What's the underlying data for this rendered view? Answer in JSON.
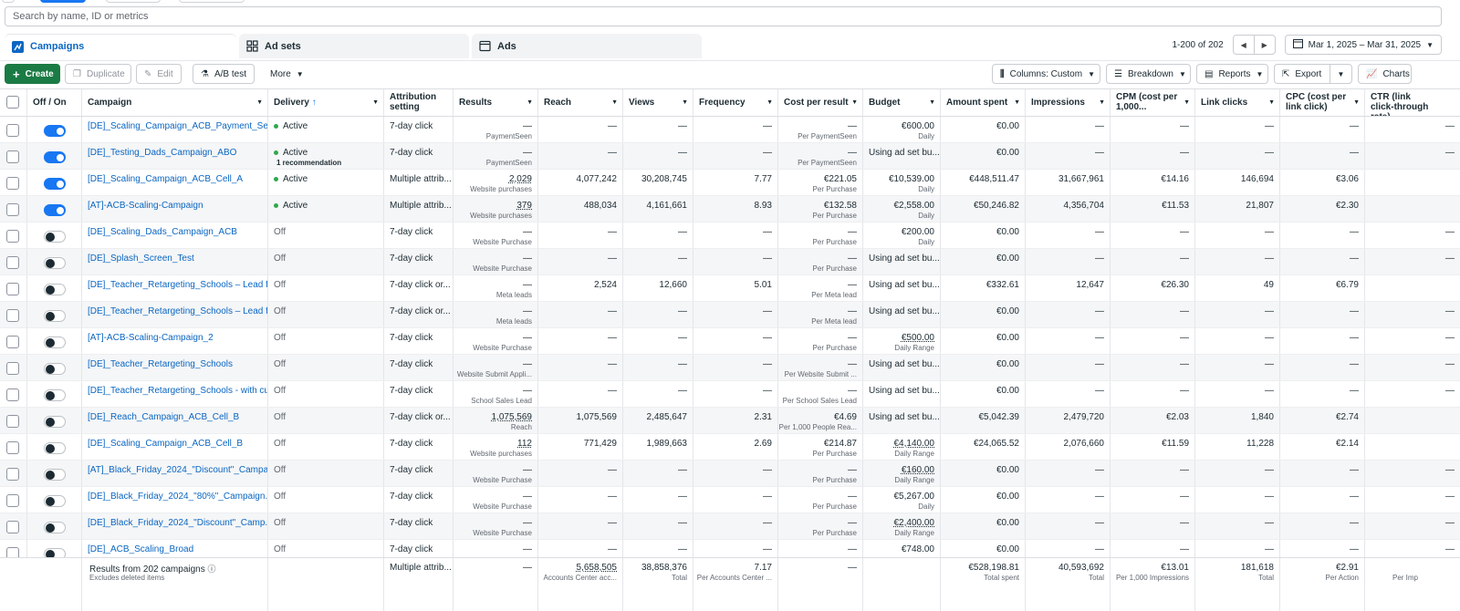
{
  "search": {
    "placeholder": "Search by name, ID or metrics"
  },
  "tabs": [
    {
      "label": "Campaigns",
      "icon": "campaigns-icon"
    },
    {
      "label": "Ad sets",
      "icon": "adsets-icon"
    },
    {
      "label": "Ads",
      "icon": "ads-icon"
    }
  ],
  "pager": {
    "count": "1-200 of 202",
    "date_range": "Mar 1, 2025 – Mar 31, 2025"
  },
  "toolbar": {
    "create": "Create",
    "duplicate": "Duplicate",
    "edit": "Edit",
    "ab_test": "A/B test",
    "more": "More",
    "columns": "Columns: Custom",
    "breakdown": "Breakdown",
    "reports": "Reports",
    "export": "Export",
    "charts": "Charts"
  },
  "columns": {
    "onoff": "Off / On",
    "campaign": "Campaign",
    "delivery": "Delivery",
    "attribution": "Attribution setting",
    "results": "Results",
    "reach": "Reach",
    "views": "Views",
    "frequency": "Frequency",
    "cpr": "Cost per result",
    "budget": "Budget",
    "spent": "Amount spent",
    "impressions": "Impressions",
    "cpm": "CPM (cost per 1,000...",
    "clicks": "Link clicks",
    "cpc": "CPC (cost per link click)",
    "ctr": "CTR (link click-through rate)"
  },
  "rows": [
    {
      "on": true,
      "campaign": "[DE]_Scaling_Campaign_ACB_Payment_Seen",
      "delivery": "Active",
      "rec": "",
      "attribution": "7-day click",
      "results": "—",
      "results_sub": "PaymentSeen",
      "reach": "—",
      "views": "—",
      "frequency": "—",
      "cpr": "—",
      "cpr_sub": "Per PaymentSeen",
      "budget": "€600.00",
      "budget_sub": "Daily",
      "spent": "€0.00",
      "impressions": "—",
      "cpm": "—",
      "clicks": "—",
      "cpc": "—",
      "ctr": "—"
    },
    {
      "on": true,
      "campaign": "[DE]_Testing_Dads_Campaign_ABO",
      "delivery": "Active",
      "rec": "1 recommendation",
      "attribution": "7-day click",
      "results": "—",
      "results_sub": "PaymentSeen",
      "reach": "—",
      "views": "—",
      "frequency": "—",
      "cpr": "—",
      "cpr_sub": "Per PaymentSeen",
      "budget": "Using ad set bu...",
      "budget_sub": "",
      "spent": "€0.00",
      "impressions": "—",
      "cpm": "—",
      "clicks": "—",
      "cpc": "—",
      "ctr": "—"
    },
    {
      "on": true,
      "campaign": "[DE]_Scaling_Campaign_ACB_Cell_A",
      "delivery": "Active",
      "rec": "",
      "attribution": "Multiple attrib...",
      "results": "2,029",
      "results_sub": "Website purchases",
      "reach": "4,077,242",
      "views": "30,208,745",
      "frequency": "7.77",
      "cpr": "€221.05",
      "cpr_sub": "Per Purchase",
      "budget": "€10,539.00",
      "budget_sub": "Daily",
      "spent": "€448,511.47",
      "impressions": "31,667,961",
      "cpm": "€14.16",
      "clicks": "146,694",
      "cpc": "€3.06",
      "ctr": ""
    },
    {
      "on": true,
      "campaign": "[AT]-ACB-Scaling-Campaign",
      "delivery": "Active",
      "rec": "",
      "attribution": "Multiple attrib...",
      "results": "379",
      "results_sub": "Website purchases",
      "reach": "488,034",
      "views": "4,161,661",
      "frequency": "8.93",
      "cpr": "€132.58",
      "cpr_sub": "Per Purchase",
      "budget": "€2,558.00",
      "budget_sub": "Daily",
      "spent": "€50,246.82",
      "impressions": "4,356,704",
      "cpm": "€11.53",
      "clicks": "21,807",
      "cpc": "€2.30",
      "ctr": ""
    },
    {
      "on": false,
      "campaign": "[DE]_Scaling_Dads_Campaign_ACB",
      "delivery": "Off",
      "rec": "",
      "attribution": "7-day click",
      "results": "—",
      "results_sub": "Website Purchase",
      "reach": "—",
      "views": "—",
      "frequency": "—",
      "cpr": "—",
      "cpr_sub": "Per Purchase",
      "budget": "€200.00",
      "budget_sub": "Daily",
      "spent": "€0.00",
      "impressions": "—",
      "cpm": "—",
      "clicks": "—",
      "cpc": "—",
      "ctr": "—"
    },
    {
      "on": false,
      "campaign": "[DE]_Splash_Screen_Test",
      "delivery": "Off",
      "rec": "",
      "attribution": "7-day click",
      "results": "—",
      "results_sub": "Website Purchase",
      "reach": "—",
      "views": "—",
      "frequency": "—",
      "cpr": "—",
      "cpr_sub": "Per Purchase",
      "budget": "Using ad set bu...",
      "budget_sub": "",
      "spent": "€0.00",
      "impressions": "—",
      "cpm": "—",
      "clicks": "—",
      "cpc": "—",
      "ctr": "—"
    },
    {
      "on": false,
      "campaign": "[DE]_Teacher_Retargeting_Schools – Lead f...",
      "delivery": "Off",
      "rec": "",
      "attribution": "7-day click or...",
      "results": "—",
      "results_sub": "Meta leads",
      "reach": "2,524",
      "views": "12,660",
      "frequency": "5.01",
      "cpr": "—",
      "cpr_sub": "Per Meta lead",
      "budget": "Using ad set bu...",
      "budget_sub": "",
      "spent": "€332.61",
      "impressions": "12,647",
      "cpm": "€26.30",
      "clicks": "49",
      "cpc": "€6.79",
      "ctr": ""
    },
    {
      "on": false,
      "campaign": "[DE]_Teacher_Retargeting_Schools – Lead f...",
      "delivery": "Off",
      "rec": "",
      "attribution": "7-day click or...",
      "results": "—",
      "results_sub": "Meta leads",
      "reach": "—",
      "views": "—",
      "frequency": "—",
      "cpr": "—",
      "cpr_sub": "Per Meta lead",
      "budget": "Using ad set bu...",
      "budget_sub": "",
      "spent": "€0.00",
      "impressions": "—",
      "cpm": "—",
      "clicks": "—",
      "cpc": "—",
      "ctr": "—"
    },
    {
      "on": false,
      "campaign": "[AT]-ACB-Scaling-Campaign_2",
      "delivery": "Off",
      "rec": "",
      "attribution": "7-day click",
      "results": "—",
      "results_sub": "Website Purchase",
      "reach": "—",
      "views": "—",
      "frequency": "—",
      "cpr": "—",
      "cpr_sub": "Per Purchase",
      "budget": "€500.00",
      "budget_sub": "Daily Range",
      "spent": "€0.00",
      "impressions": "—",
      "cpm": "—",
      "clicks": "—",
      "cpc": "—",
      "ctr": "—"
    },
    {
      "on": false,
      "campaign": "[DE]_Teacher_Retargeting_Schools",
      "delivery": "Off",
      "rec": "",
      "attribution": "7-day click",
      "results": "—",
      "results_sub": "Website Submit Appli...",
      "reach": "—",
      "views": "—",
      "frequency": "—",
      "cpr": "—",
      "cpr_sub": "Per Website Submit ...",
      "budget": "Using ad set bu...",
      "budget_sub": "",
      "spent": "€0.00",
      "impressions": "—",
      "cpm": "—",
      "clicks": "—",
      "cpc": "—",
      "ctr": "—"
    },
    {
      "on": false,
      "campaign": "[DE]_Teacher_Retargeting_Schools - with cu...",
      "delivery": "Off",
      "rec": "",
      "attribution": "7-day click",
      "results": "—",
      "results_sub": "School Sales Lead",
      "reach": "—",
      "views": "—",
      "frequency": "—",
      "cpr": "—",
      "cpr_sub": "Per School Sales Lead",
      "budget": "Using ad set bu...",
      "budget_sub": "",
      "spent": "€0.00",
      "impressions": "—",
      "cpm": "—",
      "clicks": "—",
      "cpc": "—",
      "ctr": "—"
    },
    {
      "on": false,
      "campaign": "[DE]_Reach_Campaign_ACB_Cell_B",
      "delivery": "Off",
      "rec": "",
      "attribution": "7-day click or...",
      "results": "1,075,569",
      "results_sub": "Reach",
      "reach": "1,075,569",
      "views": "2,485,647",
      "frequency": "2.31",
      "cpr": "€4.69",
      "cpr_sub": "Per 1,000 People Rea...",
      "budget": "Using ad set bu...",
      "budget_sub": "",
      "spent": "€5,042.39",
      "impressions": "2,479,720",
      "cpm": "€2.03",
      "clicks": "1,840",
      "cpc": "€2.74",
      "ctr": ""
    },
    {
      "on": false,
      "campaign": "[DE]_Scaling_Campaign_ACB_Cell_B",
      "delivery": "Off",
      "rec": "",
      "attribution": "7-day click",
      "results": "112",
      "results_sub": "Website purchases",
      "reach": "771,429",
      "views": "1,989,663",
      "frequency": "2.69",
      "cpr": "€214.87",
      "cpr_sub": "Per Purchase",
      "budget": "€4,140.00",
      "budget_sub": "Daily Range",
      "spent": "€24,065.52",
      "impressions": "2,076,660",
      "cpm": "€11.59",
      "clicks": "11,228",
      "cpc": "€2.14",
      "ctr": ""
    },
    {
      "on": false,
      "campaign": "[AT]_Black_Friday_2024_\"Discount\"_Campa...",
      "delivery": "Off",
      "rec": "",
      "attribution": "7-day click",
      "results": "—",
      "results_sub": "Website Purchase",
      "reach": "—",
      "views": "—",
      "frequency": "—",
      "cpr": "—",
      "cpr_sub": "Per Purchase",
      "budget": "€160.00",
      "budget_sub": "Daily Range",
      "spent": "€0.00",
      "impressions": "—",
      "cpm": "—",
      "clicks": "—",
      "cpc": "—",
      "ctr": "—"
    },
    {
      "on": false,
      "campaign": "[DE]_Black_Friday_2024_\"80%\"_Campaign...",
      "delivery": "Off",
      "rec": "",
      "attribution": "7-day click",
      "results": "—",
      "results_sub": "Website Purchase",
      "reach": "—",
      "views": "—",
      "frequency": "—",
      "cpr": "—",
      "cpr_sub": "Per Purchase",
      "budget": "€5,267.00",
      "budget_sub": "Daily",
      "spent": "€0.00",
      "impressions": "—",
      "cpm": "—",
      "clicks": "—",
      "cpc": "—",
      "ctr": "—"
    },
    {
      "on": false,
      "campaign": "[DE]_Black_Friday_2024_\"Discount\"_Camp...",
      "delivery": "Off",
      "rec": "",
      "attribution": "7-day click",
      "results": "—",
      "results_sub": "Website Purchase",
      "reach": "—",
      "views": "—",
      "frequency": "—",
      "cpr": "—",
      "cpr_sub": "Per Purchase",
      "budget": "€2,400.00",
      "budget_sub": "Daily Range",
      "spent": "€0.00",
      "impressions": "—",
      "cpm": "—",
      "clicks": "—",
      "cpc": "—",
      "ctr": "—"
    },
    {
      "on": false,
      "campaign": "[DE]_ACB_Scaling_Broad",
      "delivery": "Off",
      "rec": "",
      "attribution": "7-day click",
      "results": "—",
      "results_sub": "",
      "reach": "—",
      "views": "—",
      "frequency": "—",
      "cpr": "—",
      "cpr_sub": "",
      "budget": "€748.00",
      "budget_sub": "",
      "spent": "€0.00",
      "impressions": "—",
      "cpm": "—",
      "clicks": "—",
      "cpc": "—",
      "ctr": "—"
    }
  ],
  "footer": {
    "title": "Results from 202 campaigns",
    "sub": "Excludes deleted items",
    "attribution": "Multiple attrib...",
    "results": "—",
    "reach": "5,658,505",
    "reach_sub": "Accounts Center acc...",
    "views": "38,858,376",
    "views_sub": "Total",
    "frequency": "7.17",
    "frequency_sub": "Per Accounts Center ...",
    "cpr": "—",
    "spent": "€528,198.81",
    "spent_sub": "Total spent",
    "impressions": "40,593,692",
    "impressions_sub": "Total",
    "cpm": "€13.01",
    "cpm_sub": "Per 1,000 Impressions",
    "clicks": "181,618",
    "clicks_sub": "Total",
    "cpc": "€2.91",
    "cpc_sub": "Per Action",
    "ctr_sub": "Per Imp"
  },
  "colors": {
    "accent": "#0a66c2",
    "create": "#1b7b44",
    "active_dot": "#2fa84f",
    "toggle_on": "#1877f2"
  }
}
